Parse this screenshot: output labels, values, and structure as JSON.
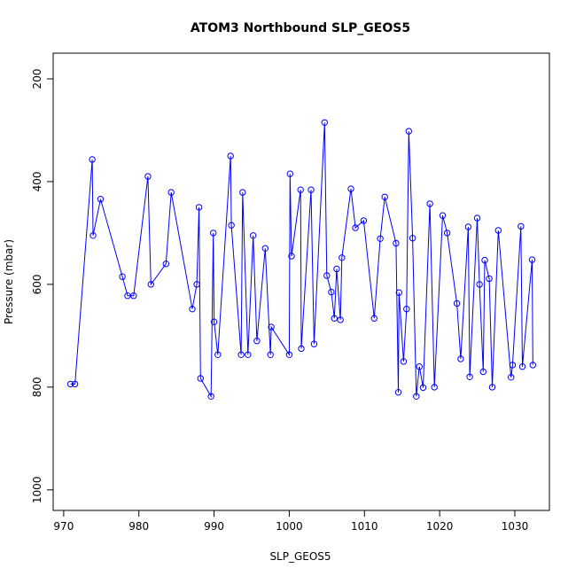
{
  "chart_data": {
    "type": "line",
    "title": "ATOM3 Northbound SLP_GEOS5",
    "xlabel": "SLP_GEOS5",
    "ylabel": "Pressure (mbar)",
    "xlim": [
      968.6,
      1034.6
    ],
    "ylim": [
      1040,
      150
    ],
    "y_reversed": true,
    "x_ticks": [
      970,
      980,
      990,
      1000,
      1010,
      1020,
      1030
    ],
    "y_ticks": [
      200,
      400,
      600,
      800,
      1000
    ],
    "series": [
      {
        "color": "#0000ff",
        "marker": "open-circle",
        "x": [
          970.9,
          971.5,
          973.8,
          973.9,
          974.9,
          977.8,
          978.5,
          979.3,
          981.2,
          981.6,
          983.6,
          984.3,
          987.1,
          987.7,
          988.0,
          988.2,
          989.6,
          989.9,
          990.0,
          990.5,
          992.2,
          992.3,
          993.6,
          993.8,
          994.5,
          995.2,
          995.7,
          996.8,
          997.5,
          997.6,
          1000.0,
          1000.1,
          1000.3,
          1001.5,
          1001.6,
          1002.9,
          1003.3,
          1004.7,
          1005.0,
          1005.6,
          1006.0,
          1006.3,
          1006.8,
          1007.0,
          1008.2,
          1008.8,
          1009.9,
          1011.3,
          1012.1,
          1012.7,
          1014.2,
          1014.5,
          1014.6,
          1015.2,
          1015.6,
          1015.9,
          1016.4,
          1016.9,
          1017.3,
          1017.8,
          1018.7,
          1019.3,
          1020.4,
          1021.0,
          1022.3,
          1022.8,
          1023.8,
          1024.0,
          1025.0,
          1025.3,
          1025.8,
          1026.0,
          1026.6,
          1027.0,
          1027.8,
          1029.5,
          1029.7,
          1030.8,
          1031.0,
          1032.3,
          1032.4
        ],
        "y": [
          794,
          794,
          357,
          505,
          434,
          585,
          622,
          622,
          390,
          600,
          560,
          421,
          648,
          600,
          450,
          783,
          818,
          500,
          673,
          737,
          350,
          485,
          737,
          421,
          737,
          505,
          710,
          530,
          737,
          683,
          737,
          385,
          545,
          416,
          725,
          416,
          716,
          285,
          583,
          615,
          666,
          570,
          669,
          548,
          414,
          490,
          476,
          666,
          511,
          430,
          520,
          810,
          616,
          750,
          648,
          302,
          510,
          818,
          760,
          801,
          443,
          800,
          466,
          500,
          637,
          745,
          488,
          780,
          471,
          600,
          770,
          553,
          589,
          800,
          495,
          781,
          757,
          487,
          760,
          552,
          757
        ]
      }
    ]
  }
}
